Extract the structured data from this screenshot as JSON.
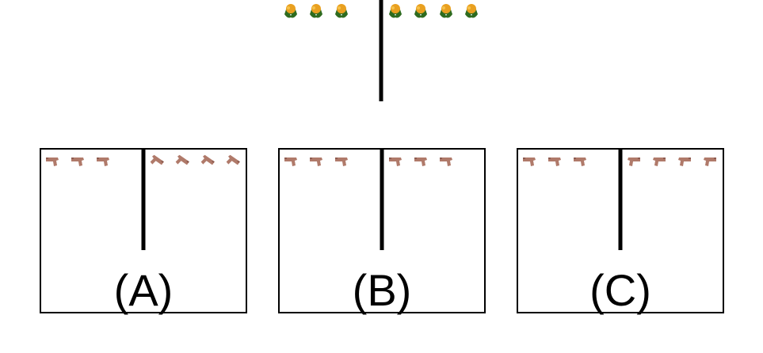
{
  "colors": {
    "line": "#000000",
    "box_border": "#000000",
    "background": "#ffffff",
    "pistol": "#b07a6a",
    "pistol_shadow": "#8e5c50",
    "flower_petal": "#e9a020",
    "flower_leaf": "#2e6b1f"
  },
  "prompt": {
    "left_group": {
      "icon": "flower-icon",
      "count": 3,
      "facing": "up"
    },
    "right_group": {
      "icon": "flower-icon",
      "count": 4,
      "facing": "up"
    }
  },
  "options": [
    {
      "label": "(A)",
      "left_group": {
        "icon": "pistol-icon",
        "count": 3,
        "facing": "left"
      },
      "right_group": {
        "icon": "pistol-icon",
        "count": 4,
        "facing": "up-right"
      }
    },
    {
      "label": "(B)",
      "left_group": {
        "icon": "pistol-icon",
        "count": 3,
        "facing": "left"
      },
      "right_group": {
        "icon": "pistol-icon",
        "count": 3,
        "facing": "left"
      }
    },
    {
      "label": "(C)",
      "left_group": {
        "icon": "pistol-icon",
        "count": 3,
        "facing": "left"
      },
      "right_group": {
        "icon": "pistol-icon",
        "count": 4,
        "facing": "right"
      }
    }
  ]
}
